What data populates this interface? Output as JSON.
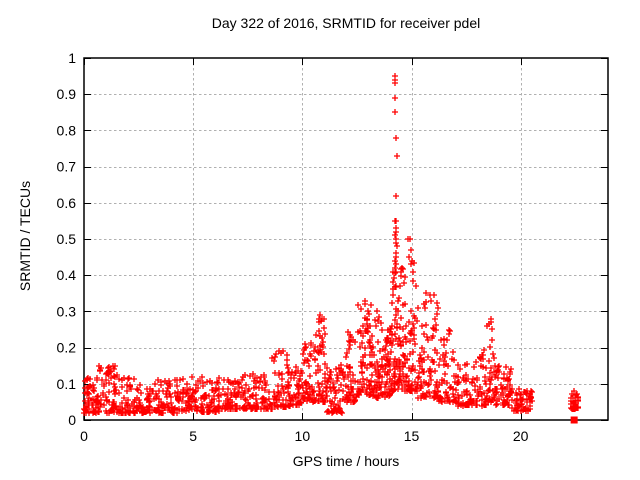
{
  "title": "Day 322 of 2016, SRMTID for receiver pdel",
  "chart_data": {
    "type": "scatter",
    "title": "Day 322 of 2016, SRMTID for receiver pdel",
    "xlabel": "GPS time / hours",
    "ylabel": "SRMTID / TECUs",
    "xlim": [
      0,
      24
    ],
    "ylim": [
      0,
      1
    ],
    "xticks": [
      [
        0,
        "0"
      ],
      [
        5,
        "5"
      ],
      [
        10,
        "10"
      ],
      [
        15,
        "15"
      ],
      [
        20,
        "20"
      ]
    ],
    "yticks": [
      [
        0,
        "0"
      ],
      [
        0.1,
        "0.1"
      ],
      [
        0.2,
        "0.2"
      ],
      [
        0.3,
        "0.3"
      ],
      [
        0.4,
        "0.4"
      ],
      [
        0.5,
        "0.5"
      ],
      [
        0.6,
        "0.6"
      ],
      [
        0.7,
        "0.7"
      ],
      [
        0.8,
        "0.8"
      ],
      [
        0.9,
        "0.9"
      ],
      [
        1,
        "1"
      ]
    ],
    "grid": true,
    "legend": "none",
    "marker": "plus",
    "marker_color": "#ff0000",
    "grid_color": "#b0b0b0",
    "axis_color": "#000000",
    "seed": 20161117,
    "cluster_fields": [
      "x_start",
      "x_end",
      "count",
      "y_min",
      "y_max",
      "low_bias"
    ],
    "clusters": [
      [
        0.0,
        0.6,
        55,
        0.02,
        0.12,
        1.8
      ],
      [
        0.6,
        1.6,
        70,
        0.02,
        0.15,
        2.0
      ],
      [
        1.6,
        2.4,
        55,
        0.018,
        0.12,
        2.2
      ],
      [
        2.4,
        3.3,
        60,
        0.02,
        0.1,
        1.9
      ],
      [
        3.3,
        4.3,
        65,
        0.02,
        0.115,
        2.0
      ],
      [
        4.3,
        5.3,
        65,
        0.025,
        0.12,
        1.9
      ],
      [
        5.3,
        6.3,
        65,
        0.022,
        0.12,
        2.0
      ],
      [
        6.3,
        7.3,
        65,
        0.03,
        0.115,
        1.9
      ],
      [
        7.3,
        8.6,
        85,
        0.03,
        0.13,
        1.9
      ],
      [
        8.6,
        9.35,
        55,
        0.035,
        0.19,
        2.2
      ],
      [
        9.35,
        10.0,
        50,
        0.04,
        0.15,
        1.9
      ],
      [
        10.0,
        10.5,
        45,
        0.05,
        0.22,
        1.7
      ],
      [
        10.5,
        11.1,
        60,
        0.05,
        0.29,
        1.9
      ],
      [
        11.1,
        11.95,
        65,
        0.02,
        0.16,
        1.9
      ],
      [
        11.95,
        12.5,
        50,
        0.05,
        0.25,
        1.8
      ],
      [
        12.5,
        13.15,
        65,
        0.07,
        0.33,
        1.8
      ],
      [
        13.15,
        13.65,
        55,
        0.06,
        0.3,
        1.9
      ],
      [
        13.65,
        14.05,
        50,
        0.06,
        0.26,
        1.7
      ],
      [
        14.05,
        14.6,
        85,
        0.08,
        0.42,
        1.7
      ],
      [
        14.6,
        15.25,
        70,
        0.08,
        0.45,
        2.0
      ],
      [
        15.25,
        16.2,
        80,
        0.06,
        0.35,
        1.9
      ],
      [
        16.2,
        17.1,
        65,
        0.05,
        0.25,
        1.9
      ],
      [
        17.1,
        18.0,
        60,
        0.04,
        0.16,
        1.8
      ],
      [
        18.0,
        18.45,
        35,
        0.04,
        0.2,
        1.8
      ],
      [
        18.45,
        18.85,
        35,
        0.05,
        0.28,
        2.0
      ],
      [
        18.85,
        19.6,
        55,
        0.04,
        0.15,
        1.8
      ],
      [
        19.6,
        20.55,
        60,
        0.025,
        0.09,
        1.6
      ],
      [
        22.3,
        22.65,
        45,
        0.03,
        0.08,
        1.3
      ]
    ],
    "points": [
      [
        14.23,
        0.95
      ],
      [
        14.25,
        0.94
      ],
      [
        14.24,
        0.93
      ],
      [
        14.26,
        0.89
      ],
      [
        14.25,
        0.85
      ],
      [
        14.27,
        0.78
      ],
      [
        14.32,
        0.73
      ],
      [
        14.28,
        0.62
      ],
      [
        14.26,
        0.55
      ],
      [
        14.3,
        0.55
      ],
      [
        14.27,
        0.53
      ],
      [
        14.31,
        0.52
      ],
      [
        14.25,
        0.51
      ],
      [
        14.29,
        0.5
      ],
      [
        14.27,
        0.49
      ],
      [
        14.33,
        0.48
      ],
      [
        14.29,
        0.46
      ],
      [
        14.31,
        0.45
      ],
      [
        14.26,
        0.44
      ],
      [
        14.3,
        0.43
      ],
      [
        14.24,
        0.42
      ],
      [
        14.28,
        0.41
      ],
      [
        14.85,
        0.5
      ],
      [
        14.92,
        0.5
      ],
      [
        14.96,
        0.47
      ],
      [
        14.9,
        0.45
      ],
      [
        15.0,
        0.44
      ],
      [
        14.97,
        0.43
      ],
      [
        15.05,
        0.41
      ],
      [
        10.82,
        0.29
      ],
      [
        10.78,
        0.28
      ],
      [
        12.88,
        0.33
      ],
      [
        12.85,
        0.32
      ],
      [
        13.4,
        0.3
      ],
      [
        15.68,
        0.35
      ],
      [
        15.9,
        0.33
      ],
      [
        15.55,
        0.32
      ],
      [
        18.62,
        0.28
      ],
      [
        18.66,
        0.27
      ],
      [
        8.95,
        0.19
      ],
      [
        9.0,
        0.185
      ],
      [
        1.35,
        0.15
      ],
      [
        1.38,
        0.14
      ]
    ],
    "square_points": [
      [
        22.45,
        0
      ]
    ]
  }
}
